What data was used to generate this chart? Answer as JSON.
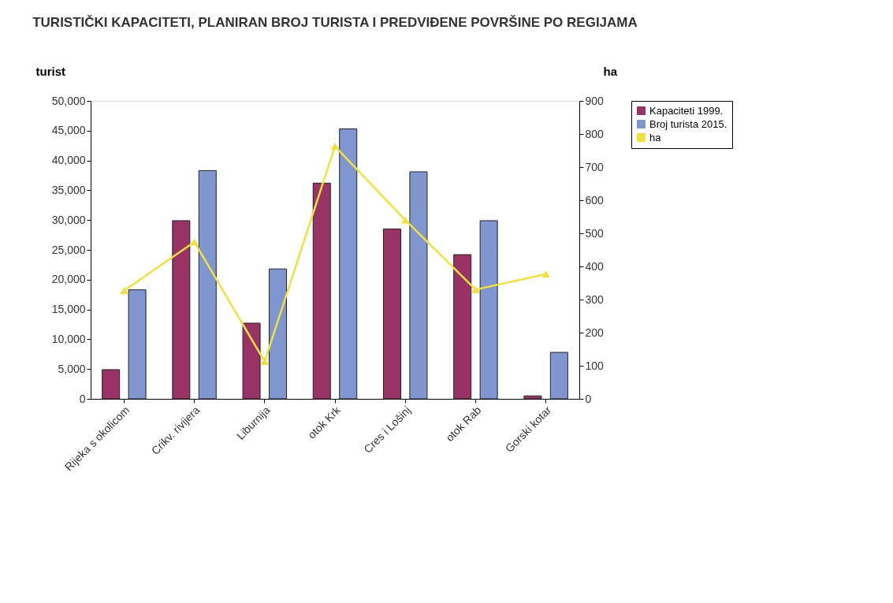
{
  "chart_data": {
    "type": "bar",
    "title": "TURISTIČKI KAPACITETI, PLANIRAN BROJ TURISTA I PREDVIĐENE POVRŠINE PO REGIJAMA",
    "ylabel": "turist",
    "y2label": "ha",
    "categories": [
      "Rijeka s okolicom",
      "Crikv. rivijera",
      "Liburnija",
      "otok Krk",
      "Cres i Lošinj",
      "otok Rab",
      "Gorski kotar"
    ],
    "series": [
      {
        "name": "Kapaciteti 1999.",
        "color": "#993366",
        "values": [
          4900,
          29900,
          12700,
          36200,
          28500,
          24200,
          500
        ]
      },
      {
        "name": "Broj turista 2015.",
        "color": "#8096d0",
        "values": [
          18300,
          38300,
          21800,
          45300,
          38100,
          29900,
          7800
        ]
      },
      {
        "name": "ha",
        "type": "line",
        "axis": "y2",
        "color": "#f0e040",
        "marker": "triangle",
        "values": [
          327,
          474,
          113,
          763,
          540,
          330,
          377
        ]
      }
    ],
    "ylim": [
      0,
      50000
    ],
    "yticks": [
      {
        "value": 0,
        "label": "0"
      },
      {
        "value": 5000,
        "label": "5,000"
      },
      {
        "value": 10000,
        "label": "10,000"
      },
      {
        "value": 15000,
        "label": "15,000"
      },
      {
        "value": 20000,
        "label": "20,000"
      },
      {
        "value": 25000,
        "label": "25,000"
      },
      {
        "value": 30000,
        "label": "30,000"
      },
      {
        "value": 35000,
        "label": "35,000"
      },
      {
        "value": 40000,
        "label": "40,000"
      },
      {
        "value": 45000,
        "label": "45,000"
      },
      {
        "value": 50000,
        "label": "50,000"
      }
    ],
    "y2lim": [
      0,
      900
    ],
    "y2ticks": [
      0,
      100,
      200,
      300,
      400,
      500,
      600,
      700,
      800,
      900
    ],
    "grid": false,
    "legend": "right"
  }
}
